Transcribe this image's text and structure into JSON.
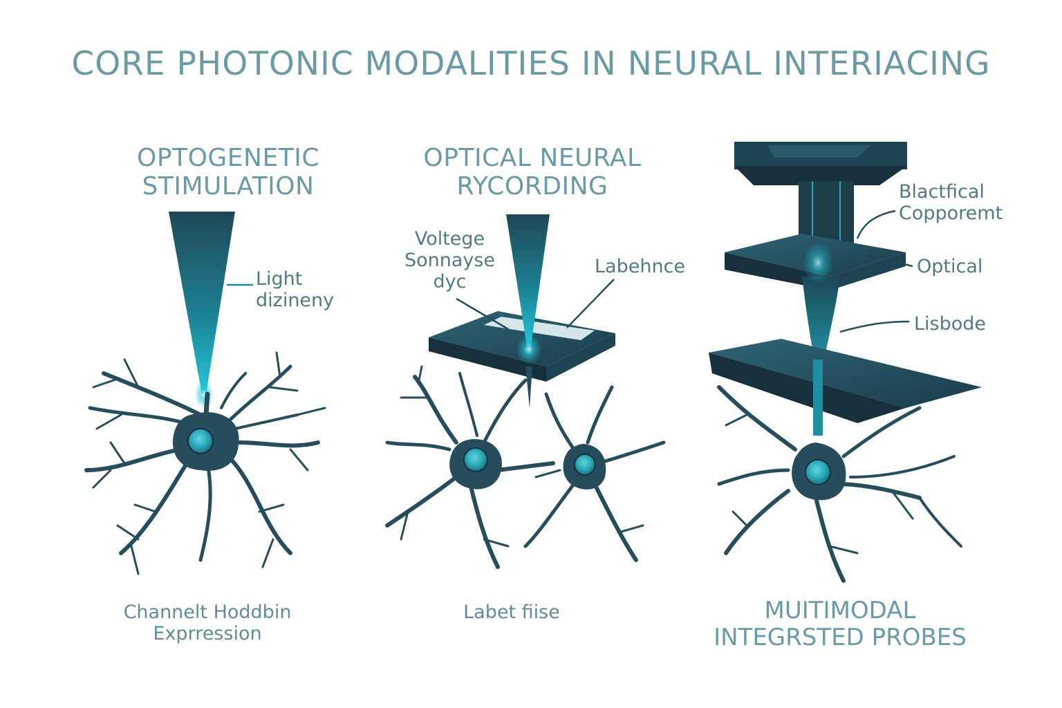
{
  "title": "CORE PHOTONIC MODALITIES IN NEURAL INTERIACING",
  "panels": [
    {
      "title": "OPTOGENETIC\nSTIMULATION",
      "callouts": [
        "Light\ndizineny"
      ],
      "caption": "Channelt Hoddbin\nExprression"
    },
    {
      "title": "OPTICAL NEURAL\nRYCORDING",
      "callouts": [
        "Voltege\nSonnayse\ndyc",
        "Labehnce"
      ],
      "caption": "Labet fiise"
    },
    {
      "callouts": [
        "Blactfical\nCopporemt",
        "Optical",
        "Lisbode"
      ],
      "caption": "MUITIMODAL\nINTEGRSTED PROBES"
    }
  ],
  "colors": {
    "neuron": "#264d5c",
    "neuron_dark": "#16313d",
    "nucleus": "#2aa6b4",
    "beam": "#1f8a9c",
    "beam_glow": "#22c6d6",
    "text": "#6a9aa6"
  },
  "icons": [
    "light-beam",
    "neuron",
    "recording-plate",
    "multimodal-probe"
  ]
}
